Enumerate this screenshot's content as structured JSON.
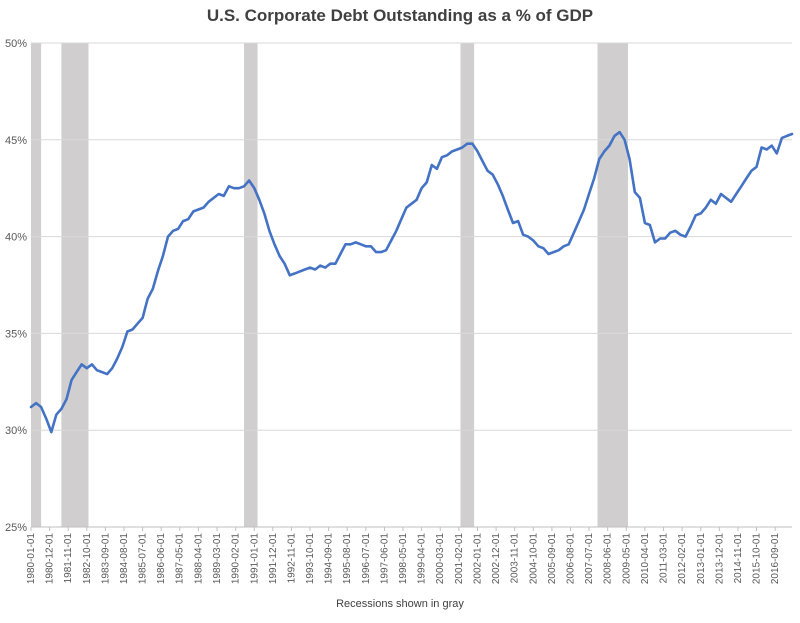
{
  "chart_data": {
    "type": "line",
    "title": "U.S. Corporate Debt Outstanding as a % of GDP",
    "xlabel": "Recessions shown in gray",
    "ylabel": "",
    "ylim": [
      25,
      50
    ],
    "y_ticks": [
      25,
      30,
      35,
      40,
      45,
      50
    ],
    "y_tick_format": "%",
    "grid": "horizontal",
    "colors": {
      "line": "#4472C4",
      "recession": "#D0CECE",
      "grid": "#D9D9D9",
      "axis": "#BFBFBF"
    },
    "x_range": [
      "1980-01-01",
      "2017-07-01"
    ],
    "x_tick_labels": [
      "1980-01-01",
      "1980-12-01",
      "1981-11-01",
      "1982-10-01",
      "1983-09-01",
      "1984-08-01",
      "1985-07-01",
      "1986-06-01",
      "1987-05-01",
      "1988-04-01",
      "1989-03-01",
      "1990-02-01",
      "1991-01-01",
      "1991-12-01",
      "1992-11-01",
      "1993-10-01",
      "1994-09-01",
      "1995-08-01",
      "1996-07-01",
      "1997-06-01",
      "1998-05-01",
      "1999-04-01",
      "2000-03-01",
      "2001-02-01",
      "2002-01-01",
      "2002-12-01",
      "2003-11-01",
      "2004-10-01",
      "2005-09-01",
      "2006-08-01",
      "2007-07-01",
      "2008-06-01",
      "2009-05-01",
      "2010-04-01",
      "2011-03-01",
      "2012-02-01",
      "2013-01-01",
      "2013-12-01",
      "2014-11-01",
      "2015-10-01",
      "2016-09-01"
    ],
    "recessions": [
      [
        "1980-01-01",
        "1980-07-01"
      ],
      [
        "1981-07-01",
        "1982-11-01"
      ],
      [
        "1990-07-01",
        "1991-03-01"
      ],
      [
        "2001-03-01",
        "2001-11-01"
      ],
      [
        "2007-12-01",
        "2009-06-01"
      ]
    ],
    "series": [
      {
        "x": [
          "1980-01-01",
          "1980-04-01",
          "1980-07-01",
          "1980-10-01",
          "1981-01-01",
          "1981-04-01",
          "1981-07-01",
          "1981-10-01",
          "1982-01-01",
          "1982-04-01",
          "1982-07-01",
          "1982-10-01",
          "1983-01-01",
          "1983-04-01",
          "1983-07-01",
          "1983-10-01",
          "1984-01-01",
          "1984-04-01",
          "1984-07-01",
          "1984-10-01",
          "1985-01-01",
          "1985-04-01",
          "1985-07-01",
          "1985-10-01",
          "1986-01-01",
          "1986-04-01",
          "1986-07-01",
          "1986-10-01",
          "1987-01-01",
          "1987-04-01",
          "1987-07-01",
          "1987-10-01",
          "1988-01-01",
          "1988-04-01",
          "1988-07-01",
          "1988-10-01",
          "1989-01-01",
          "1989-04-01",
          "1989-07-01",
          "1989-10-01",
          "1990-01-01",
          "1990-04-01",
          "1990-07-01",
          "1990-10-01",
          "1991-01-01",
          "1991-04-01",
          "1991-07-01",
          "1991-10-01",
          "1992-01-01",
          "1992-04-01",
          "1992-07-01",
          "1992-10-01",
          "1993-01-01",
          "1993-04-01",
          "1993-07-01",
          "1993-10-01",
          "1994-01-01",
          "1994-04-01",
          "1994-07-01",
          "1994-10-01",
          "1995-01-01",
          "1995-04-01",
          "1995-07-01",
          "1995-10-01",
          "1996-01-01",
          "1996-04-01",
          "1996-07-01",
          "1996-10-01",
          "1997-01-01",
          "1997-04-01",
          "1997-07-01",
          "1997-10-01",
          "1998-01-01",
          "1998-04-01",
          "1998-07-01",
          "1998-10-01",
          "1999-01-01",
          "1999-04-01",
          "1999-07-01",
          "1999-10-01",
          "2000-01-01",
          "2000-04-01",
          "2000-07-01",
          "2000-10-01",
          "2001-01-01",
          "2001-04-01",
          "2001-07-01",
          "2001-10-01",
          "2002-01-01",
          "2002-04-01",
          "2002-07-01",
          "2002-10-01",
          "2003-01-01",
          "2003-04-01",
          "2003-07-01",
          "2003-10-01",
          "2004-01-01",
          "2004-04-01",
          "2004-07-01",
          "2004-10-01",
          "2005-01-01",
          "2005-04-01",
          "2005-07-01",
          "2005-10-01",
          "2006-01-01",
          "2006-04-01",
          "2006-07-01",
          "2006-10-01",
          "2007-01-01",
          "2007-04-01",
          "2007-07-01",
          "2007-10-01",
          "2008-01-01",
          "2008-04-01",
          "2008-07-01",
          "2008-10-01",
          "2009-01-01",
          "2009-04-01",
          "2009-07-01",
          "2009-10-01",
          "2010-01-01",
          "2010-04-01",
          "2010-07-01",
          "2010-10-01",
          "2011-01-01",
          "2011-04-01",
          "2011-07-01",
          "2011-10-01",
          "2012-01-01",
          "2012-04-01",
          "2012-07-01",
          "2012-10-01",
          "2013-01-01",
          "2013-04-01",
          "2013-07-01",
          "2013-10-01",
          "2014-01-01",
          "2014-04-01",
          "2014-07-01",
          "2014-10-01",
          "2015-01-01",
          "2015-04-01",
          "2015-07-01",
          "2015-10-01",
          "2016-01-01",
          "2016-04-01",
          "2016-07-01",
          "2016-10-01",
          "2017-01-01",
          "2017-04-01",
          "2017-07-01"
        ],
        "values": [
          31.2,
          31.4,
          31.2,
          30.6,
          29.9,
          30.8,
          31.1,
          31.6,
          32.6,
          33.0,
          33.4,
          33.2,
          33.4,
          33.1,
          33.0,
          32.9,
          33.2,
          33.7,
          34.3,
          35.1,
          35.2,
          35.5,
          35.8,
          36.8,
          37.3,
          38.2,
          39.0,
          40.0,
          40.3,
          40.4,
          40.8,
          40.9,
          41.3,
          41.4,
          41.5,
          41.8,
          42.0,
          42.2,
          42.1,
          42.6,
          42.5,
          42.5,
          42.6,
          42.9,
          42.5,
          41.9,
          41.2,
          40.3,
          39.6,
          39.0,
          38.6,
          38.0,
          38.1,
          38.2,
          38.3,
          38.4,
          38.3,
          38.5,
          38.4,
          38.6,
          38.6,
          39.1,
          39.6,
          39.6,
          39.7,
          39.6,
          39.5,
          39.5,
          39.2,
          39.2,
          39.3,
          39.8,
          40.3,
          40.9,
          41.5,
          41.7,
          41.9,
          42.5,
          42.8,
          43.7,
          43.5,
          44.1,
          44.2,
          44.4,
          44.5,
          44.6,
          44.8,
          44.8,
          44.4,
          43.9,
          43.4,
          43.2,
          42.7,
          42.1,
          41.4,
          40.7,
          40.8,
          40.1,
          40.0,
          39.8,
          39.5,
          39.4,
          39.1,
          39.2,
          39.3,
          39.5,
          39.6,
          40.2,
          40.8,
          41.4,
          42.2,
          43.0,
          44.0,
          44.4,
          44.7,
          45.2,
          45.4,
          45.0,
          44.0,
          42.3,
          42.0,
          40.7,
          40.6,
          39.7,
          39.9,
          39.9,
          40.2,
          40.3,
          40.1,
          40.0,
          40.5,
          41.1,
          41.2,
          41.5,
          41.9,
          41.7,
          42.2,
          42.0,
          41.8,
          42.2,
          42.6,
          43.0,
          43.4,
          43.6,
          44.6,
          44.5,
          44.7,
          44.3,
          45.1,
          45.2,
          45.3
        ]
      }
    ]
  }
}
